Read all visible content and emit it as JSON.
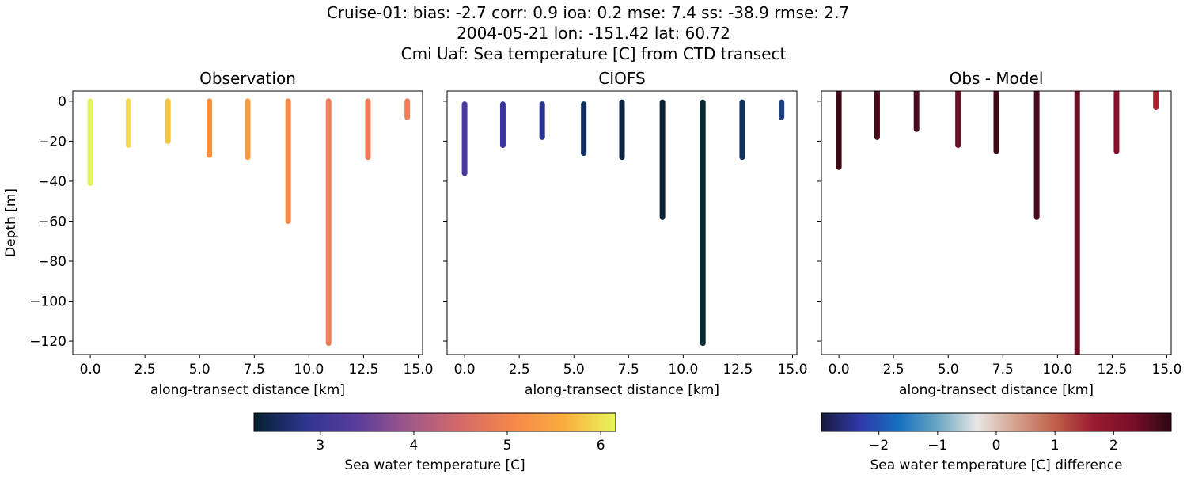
{
  "title_lines": [
    "Cruise-01: bias: -2.7  corr: 0.9  ioa: 0.2  mse: 7.4  ss: -38.9  rmse: 2.7",
    "2004-05-21 lon: -151.42 lat: 60.72",
    "Cmi Uaf: Sea temperature [C] from CTD transect"
  ],
  "chart_data": [
    {
      "type": "scatter",
      "title": "Observation",
      "xlabel": "along-transect distance [km]",
      "ylabel": "Depth [m]",
      "xlim": [
        -0.8,
        15.2
      ],
      "ylim": [
        -126.7,
        5.1
      ],
      "xticks": [
        "0.0",
        "2.5",
        "5.0",
        "7.5",
        "10.0",
        "12.5",
        "15.0"
      ],
      "xtick_values": [
        0,
        2.5,
        5,
        7.5,
        10,
        12.5,
        15
      ],
      "yticks": [
        "0",
        "−20",
        "−40",
        "−60",
        "−80",
        "−100",
        "−120"
      ],
      "ytick_values": [
        0,
        -20,
        -40,
        -60,
        -80,
        -100,
        -120
      ],
      "casts": [
        {
          "x": 0.0,
          "top": 0,
          "bottom": -41,
          "color": "#e8f55a"
        },
        {
          "x": 1.75,
          "top": 0,
          "bottom": -22,
          "color": "#f2dc4e"
        },
        {
          "x": 3.55,
          "top": 0,
          "bottom": -20,
          "color": "#f7c640"
        },
        {
          "x": 5.45,
          "top": 0,
          "bottom": -27,
          "color": "#f99040"
        },
        {
          "x": 7.2,
          "top": 0,
          "bottom": -28,
          "color": "#fb9a42"
        },
        {
          "x": 9.05,
          "top": 0,
          "bottom": -60,
          "color": "#f88c46"
        },
        {
          "x": 10.9,
          "top": 0,
          "bottom": -121,
          "color": "#ef7e58"
        },
        {
          "x": 12.7,
          "top": 0,
          "bottom": -28,
          "color": "#ee7c58"
        },
        {
          "x": 14.5,
          "top": 0,
          "bottom": -8,
          "color": "#ef7e56"
        }
      ]
    },
    {
      "type": "scatter",
      "title": "CIOFS",
      "xlabel": "along-transect distance [km]",
      "xlim": [
        -0.8,
        15.2
      ],
      "ylim": [
        -126.7,
        5.1
      ],
      "xticks": [
        "0.0",
        "2.5",
        "5.0",
        "7.5",
        "10.0",
        "12.5",
        "15.0"
      ],
      "xtick_values": [
        0,
        2.5,
        5,
        7.5,
        10,
        12.5,
        15
      ],
      "ytick_values": [
        0,
        -20,
        -40,
        -60,
        -80,
        -100,
        -120
      ],
      "casts": [
        {
          "x": 0.0,
          "top": -1.5,
          "bottom": -36,
          "color": "#4a3aa0"
        },
        {
          "x": 1.75,
          "top": -1.5,
          "bottom": -22,
          "color": "#3833a0"
        },
        {
          "x": 3.55,
          "top": -1.5,
          "bottom": -18,
          "color": "#283490"
        },
        {
          "x": 5.45,
          "top": -1.5,
          "bottom": -26,
          "color": "#0f2f60"
        },
        {
          "x": 7.2,
          "top": -0.5,
          "bottom": -28,
          "color": "#0a2542"
        },
        {
          "x": 9.05,
          "top": -0.5,
          "bottom": -58,
          "color": "#0a2232"
        },
        {
          "x": 10.9,
          "top": -0.5,
          "bottom": -121,
          "color": "#062a32"
        },
        {
          "x": 12.7,
          "top": -0.5,
          "bottom": -28,
          "color": "#10305e"
        },
        {
          "x": 14.5,
          "top": -0.5,
          "bottom": -8,
          "color": "#1e3f82"
        }
      ]
    },
    {
      "type": "scatter",
      "title": "Obs - Model",
      "xlabel": "along-transect distance [km]",
      "xlim": [
        -0.8,
        15.2
      ],
      "ylim": [
        -126.7,
        5.1
      ],
      "xticks": [
        "0.0",
        "2.5",
        "5.0",
        "7.5",
        "10.0",
        "12.5",
        "15.0"
      ],
      "xtick_values": [
        0,
        2.5,
        5,
        7.5,
        10,
        12.5,
        15
      ],
      "ytick_values": [
        0,
        -20,
        -40,
        -60,
        -80,
        -100,
        -120
      ],
      "casts": [
        {
          "x": 0.0,
          "top": 5,
          "bottom": -33,
          "color": "#3e0a16"
        },
        {
          "x": 1.75,
          "top": 5,
          "bottom": -18,
          "color": "#470a18"
        },
        {
          "x": 3.55,
          "top": 5,
          "bottom": -14,
          "color": "#4a0c1c"
        },
        {
          "x": 5.45,
          "top": 5,
          "bottom": -22,
          "color": "#6a0e24"
        },
        {
          "x": 7.2,
          "top": 5,
          "bottom": -25,
          "color": "#3e0a16"
        },
        {
          "x": 9.05,
          "top": 5,
          "bottom": -58,
          "color": "#4a0c1c"
        },
        {
          "x": 10.9,
          "top": 5,
          "bottom": -130,
          "color": "#6a0e24"
        },
        {
          "x": 12.7,
          "top": 5,
          "bottom": -25,
          "color": "#870e2a"
        },
        {
          "x": 14.5,
          "top": 5,
          "bottom": -3,
          "color": "#b0202c"
        }
      ]
    }
  ],
  "colorbars": [
    {
      "label": "Sea water temperature [C]",
      "range": [
        2.29,
        6.16
      ],
      "ticks": [
        "3",
        "4",
        "5",
        "6"
      ],
      "tick_values": [
        3,
        4,
        5,
        6
      ],
      "colors": [
        "#04202f",
        "#2e3590",
        "#5a3c9c",
        "#a05888",
        "#d46a6a",
        "#f5874a",
        "#fbad3e",
        "#e8f55a"
      ]
    },
    {
      "label": "Sea water temperature [C] difference",
      "range": [
        -2.98,
        2.98
      ],
      "ticks": [
        "−2",
        "−1",
        "0",
        "1",
        "2"
      ],
      "tick_values": [
        -2,
        -1,
        0,
        1,
        2
      ],
      "colors": [
        "#1a1a40",
        "#2e3aa8",
        "#1670c0",
        "#6ba7c4",
        "#e8e6e4",
        "#d6a08c",
        "#c0604a",
        "#9a1a30",
        "#7a0e28",
        "#2a0810"
      ]
    }
  ]
}
